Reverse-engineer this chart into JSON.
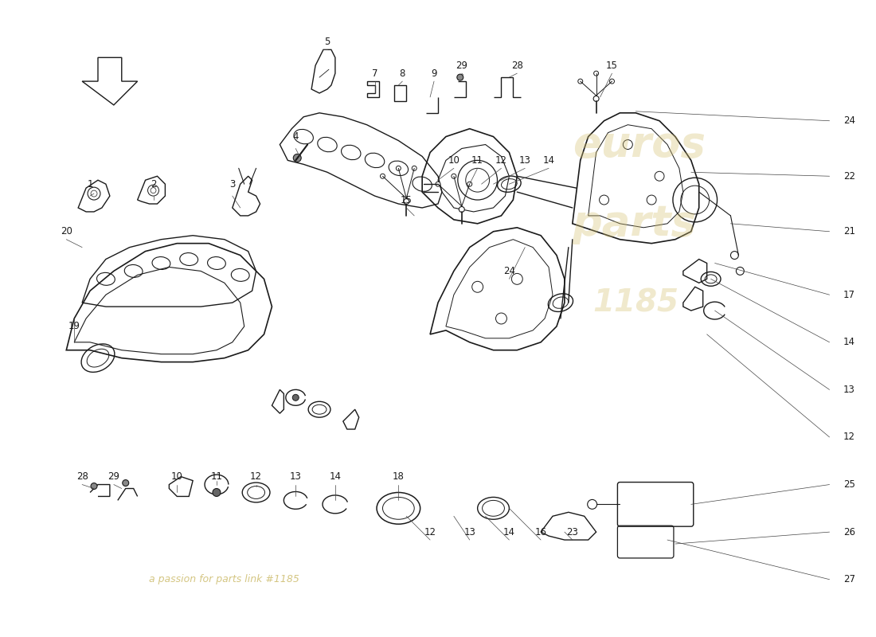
{
  "bg_color": "#ffffff",
  "line_color": "#1a1a1a",
  "lw_main": 1.0,
  "lw_thin": 0.6,
  "lw_heavy": 1.4,
  "label_fontsize": 8.5,
  "watermark_text1": "euros",
  "watermark_text2": "parts",
  "watermark_sub": "a passion for parts link #1185",
  "wm_color": "#d4c070",
  "wm_alpha": 0.35,
  "arrow_hollow": true,
  "right_labels": {
    "24": 0.24,
    "22": 0.32,
    "21": 0.4,
    "17": 0.49,
    "14": 0.565,
    "13": 0.63,
    "12": 0.7,
    "25": 0.765,
    "26": 0.83,
    "27": 0.895
  },
  "label_fs": 8.5
}
